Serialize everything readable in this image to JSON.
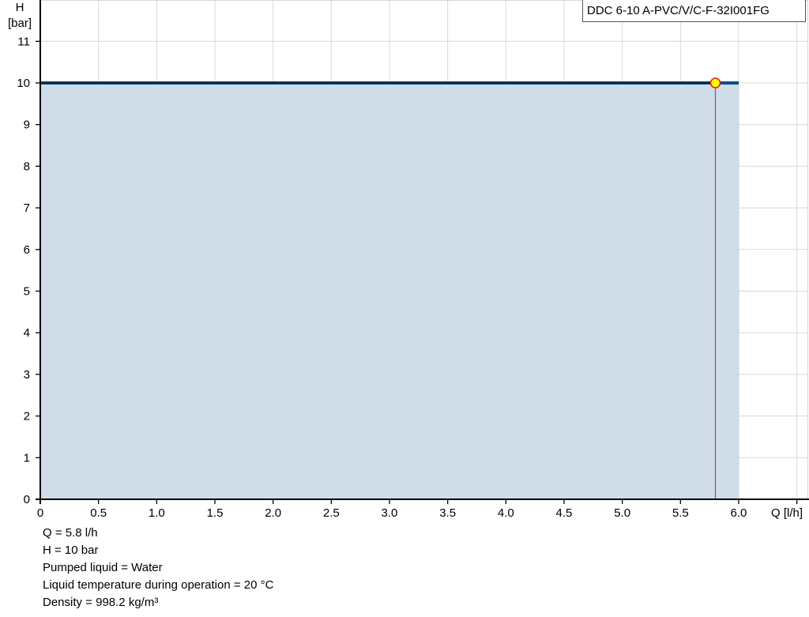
{
  "chart_data": {
    "type": "area",
    "title": "",
    "xlabel": "Q [l/h]",
    "ylabel_line1": "H",
    "ylabel_line2": "[bar]",
    "xlim": [
      0,
      6.6
    ],
    "ylim": [
      0,
      12
    ],
    "x_ticks": [
      0,
      0.5,
      1.0,
      1.5,
      2.0,
      2.5,
      3.0,
      3.5,
      4.0,
      4.5,
      5.0,
      5.5,
      6.0,
      6.5
    ],
    "x_tick_labels": [
      "0",
      "0.5",
      "1.0",
      "1.5",
      "2.0",
      "2.5",
      "3.0",
      "3.5",
      "4.0",
      "4.5",
      "5.0",
      "5.5",
      "6.0",
      ""
    ],
    "y_ticks": [
      0,
      1,
      2,
      3,
      4,
      5,
      6,
      7,
      8,
      9,
      10,
      11
    ],
    "y_tick_labels": [
      "0",
      "1",
      "2",
      "3",
      "4",
      "5",
      "6",
      "7",
      "8",
      "9",
      "10",
      "11"
    ],
    "grid": true,
    "series": [
      {
        "name": "DDC 6-10 A-PVC/V/C-F-32I001FG",
        "x": [
          0,
          6.0
        ],
        "y": [
          10,
          10
        ],
        "color": "#0b4f86",
        "fill": "#d0dce7"
      }
    ],
    "operating_point": {
      "x": 5.8,
      "y": 10,
      "fill": "#ffff00",
      "stroke": "#e8141a"
    },
    "legend": "top-right"
  },
  "info": [
    "Q = 5.8 l/h",
    "H = 10 bar",
    "Pumped liquid = Water",
    "Liquid temperature during operation = 20 °C",
    "Density = 998.2 kg/m³"
  ]
}
